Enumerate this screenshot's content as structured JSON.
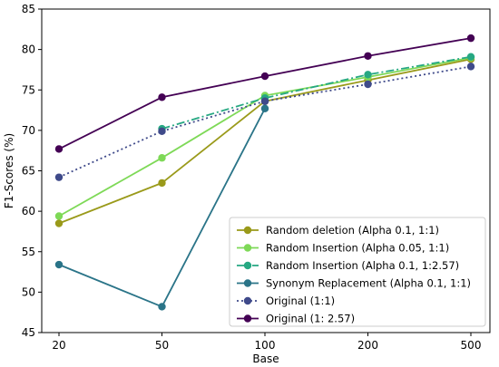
{
  "chart_data": {
    "type": "line",
    "title": "",
    "xlabel": "Base",
    "ylabel": "F1-Scores (%)",
    "categories": [
      "20",
      "50",
      "100",
      "200",
      "500"
    ],
    "ylim": [
      45,
      85
    ],
    "yticks": [
      "45",
      "50",
      "55",
      "60",
      "65",
      "70",
      "75",
      "80",
      "85"
    ],
    "grid": false,
    "legend_position": "bottom-right",
    "series": [
      {
        "name": "Random deletion (Alpha 0.1, 1:1)",
        "values": [
          58.5,
          63.5,
          73.6,
          76.2,
          78.8
        ],
        "color": "#9a9a1a",
        "style": "solid"
      },
      {
        "name": "Random Insertion (Alpha 0.05, 1:1)",
        "values": [
          59.4,
          66.6,
          74.3,
          76.6,
          79.0
        ],
        "color": "#7ed957",
        "style": "solid"
      },
      {
        "name": "Random Insertion (Alpha 0.1, 1:2.57)",
        "values": [
          null,
          70.2,
          74.0,
          76.9,
          79.1
        ],
        "color": "#26a882",
        "style": "dashdot"
      },
      {
        "name": "Synonym Replacement (Alpha 0.1, 1:1)",
        "values": [
          53.4,
          48.2,
          72.7,
          null,
          null
        ],
        "color": "#2a7488",
        "style": "solid"
      },
      {
        "name": "Original (1:1)",
        "values": [
          64.2,
          69.9,
          73.6,
          75.7,
          77.9
        ],
        "color": "#3f4a8a",
        "style": "dotted"
      },
      {
        "name": "Original (1: 2.57)",
        "values": [
          67.7,
          74.1,
          76.7,
          79.2,
          81.4
        ],
        "color": "#440154",
        "style": "solid"
      }
    ]
  }
}
